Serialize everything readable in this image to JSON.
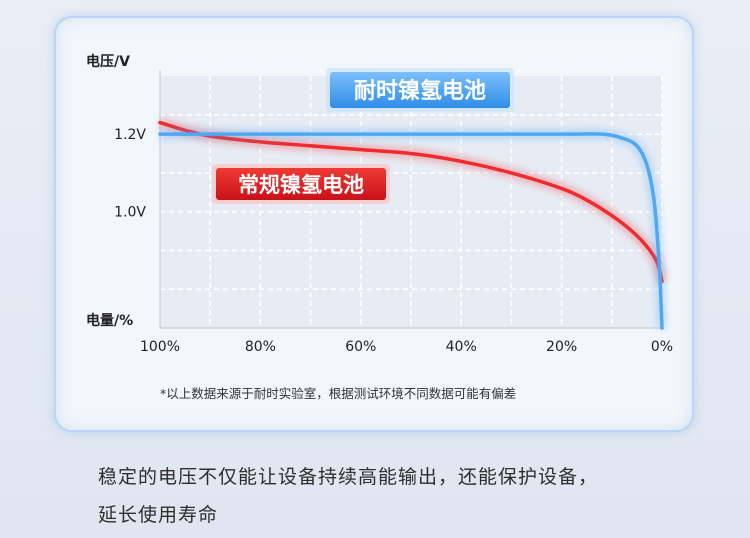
{
  "chart_data": {
    "type": "line",
    "ylabel": "电压/V",
    "xlabel": "电量/%",
    "x_ticks": [
      "100%",
      "80%",
      "60%",
      "40%",
      "20%",
      "0%"
    ],
    "y_ticks": [
      "1.2V",
      "1.0V"
    ],
    "x_range": [
      100,
      0
    ],
    "y_range": [
      0.7,
      1.35
    ],
    "grid": true,
    "series": [
      {
        "name": "耐时镍氢电池",
        "color": "#4fa8f2",
        "x": [
          100,
          90,
          80,
          60,
          40,
          20,
          12,
          8,
          5,
          3,
          1.5,
          0.5,
          0
        ],
        "y": [
          1.2,
          1.2,
          1.2,
          1.2,
          1.2,
          1.2,
          1.2,
          1.19,
          1.17,
          1.12,
          1.02,
          0.85,
          0.7
        ]
      },
      {
        "name": "常规镍氢电池",
        "color": "#ef2b2e",
        "x": [
          100,
          95,
          90,
          80,
          70,
          60,
          50,
          40,
          30,
          20,
          15,
          10,
          6,
          3,
          1,
          0
        ],
        "y": [
          1.23,
          1.21,
          1.195,
          1.18,
          1.17,
          1.16,
          1.15,
          1.13,
          1.1,
          1.06,
          1.03,
          0.99,
          0.95,
          0.91,
          0.87,
          0.82
        ]
      }
    ],
    "footnote": "*以上数据来源于耐时实验室，根据测试环境不同数据可能有偏差"
  },
  "caption": {
    "line1": "稳定的电压不仅能让设备持续高能输出，还能保护设备，",
    "line2": "延长使用寿命"
  }
}
